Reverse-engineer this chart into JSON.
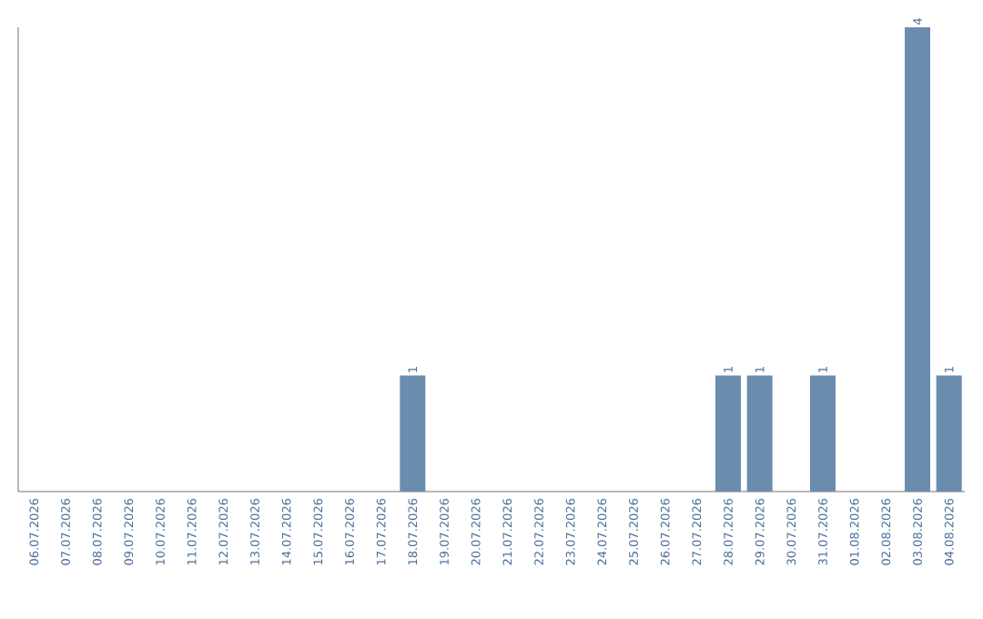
{
  "chart_data": {
    "type": "bar",
    "categories": [
      "06.07.2026",
      "07.07.2026",
      "08.07.2026",
      "09.07.2026",
      "10.07.2026",
      "11.07.2026",
      "12.07.2026",
      "13.07.2026",
      "14.07.2026",
      "15.07.2026",
      "16.07.2026",
      "17.07.2026",
      "18.07.2026",
      "19.07.2026",
      "20.07.2026",
      "21.07.2026",
      "22.07.2026",
      "23.07.2026",
      "24.07.2026",
      "25.07.2026",
      "26.07.2026",
      "27.07.2026",
      "28.07.2026",
      "29.07.2026",
      "30.07.2026",
      "31.07.2026",
      "01.08.2026",
      "02.08.2026",
      "03.08.2026",
      "04.08.2026"
    ],
    "values": [
      null,
      null,
      null,
      null,
      null,
      null,
      null,
      null,
      null,
      null,
      null,
      null,
      1,
      null,
      null,
      null,
      null,
      null,
      null,
      null,
      null,
      null,
      1,
      1,
      null,
      1,
      null,
      null,
      4,
      1
    ],
    "data_labels": true,
    "color": "#6a8caf",
    "tick_labels": "x",
    "grid": false
  }
}
